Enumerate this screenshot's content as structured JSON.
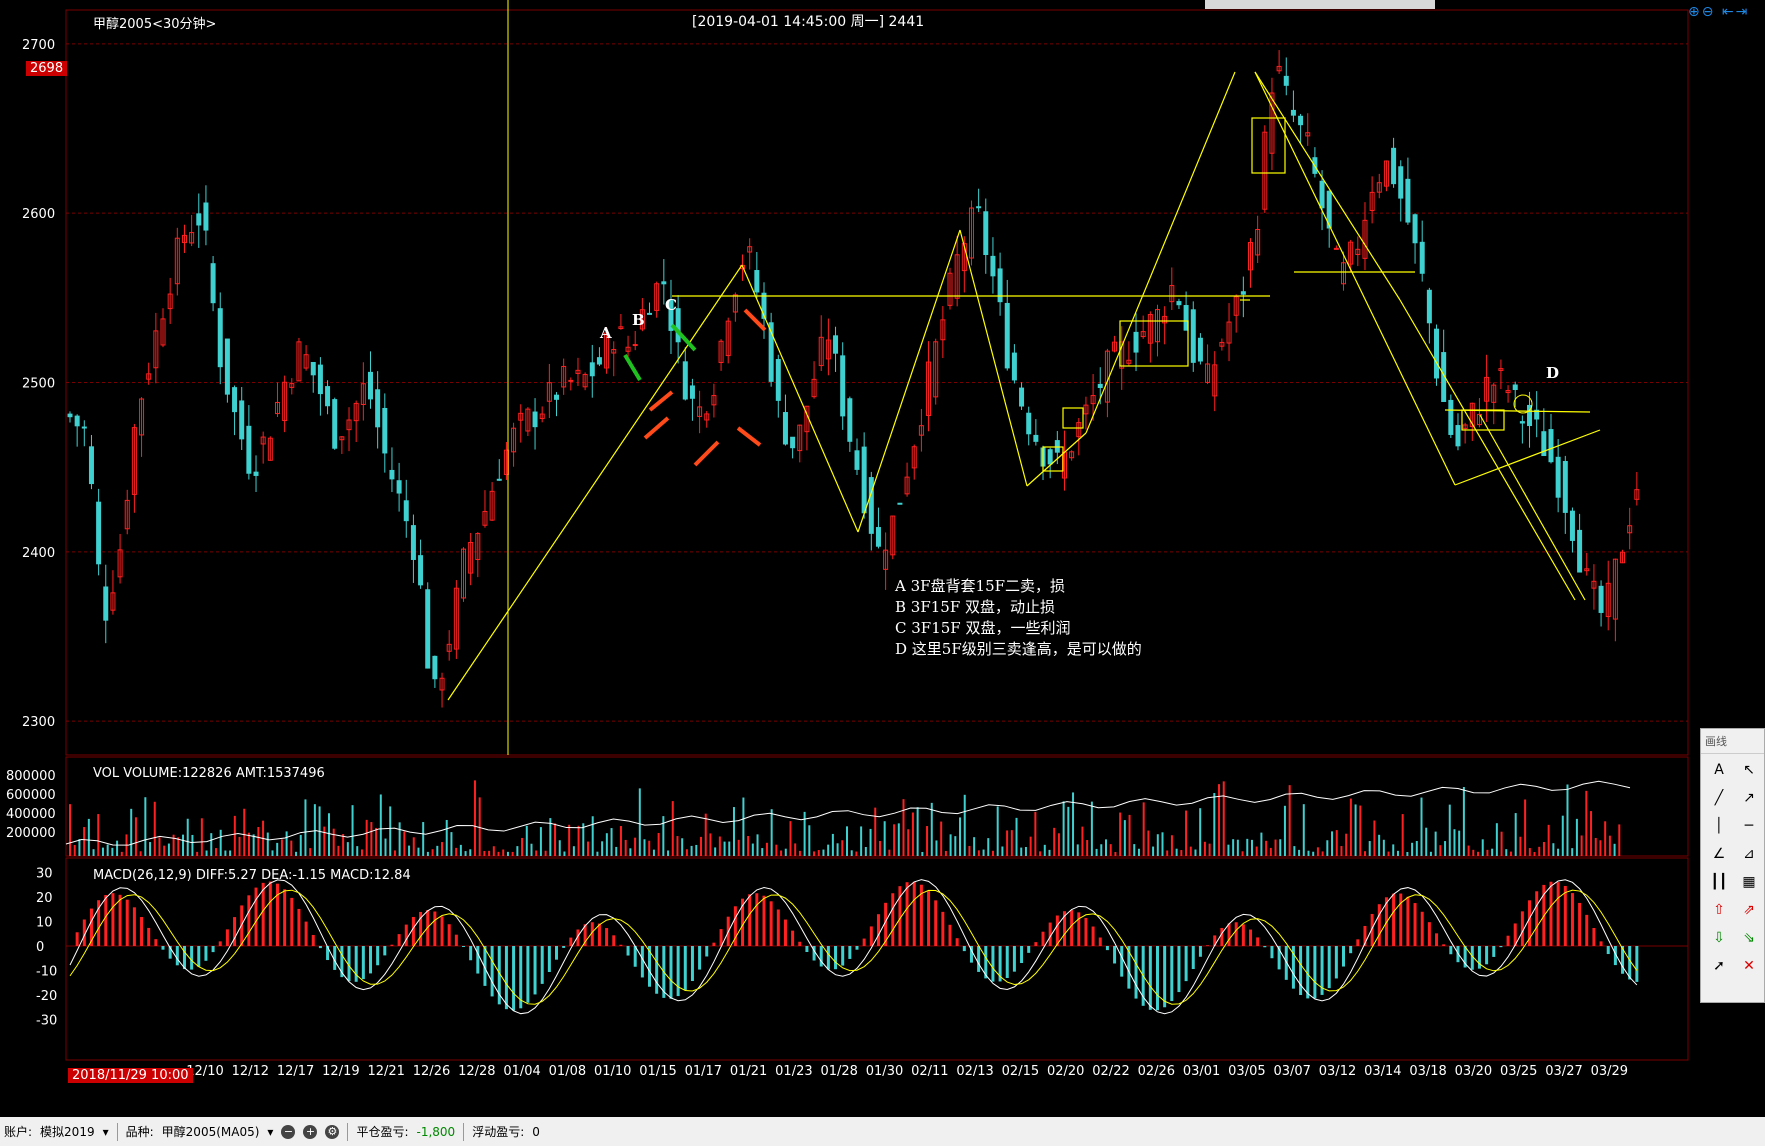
{
  "header": {
    "instrument": "甲醇2005<30分钟>",
    "cursor_info": "[2019-04-01  14:45:00 周一]   2441",
    "current_price": "2698",
    "cursor_date": "2018/11/29 10:00"
  },
  "chart_data": {
    "type": "candlestick",
    "price_axis": {
      "ticks": [
        2700,
        2600,
        2500,
        2400,
        2300
      ],
      "range": [
        2280,
        2720
      ]
    },
    "x_ticks": [
      "12/10",
      "12/12",
      "12/17",
      "12/19",
      "12/21",
      "12/26",
      "12/28",
      "01/04",
      "01/08",
      "01/10",
      "01/15",
      "01/17",
      "01/21",
      "01/23",
      "01/28",
      "01/30",
      "02/11",
      "02/13",
      "02/15",
      "02/20",
      "02/22",
      "02/26",
      "03/01",
      "03/05",
      "03/07",
      "03/12",
      "03/14",
      "03/18",
      "03/20",
      "03/25",
      "03/27",
      "03/29"
    ],
    "price_path": [
      2480,
      2470,
      2360,
      2400,
      2480,
      2520,
      2560,
      2590,
      2600,
      2520,
      2480,
      2450,
      2470,
      2500,
      2520,
      2500,
      2470,
      2480,
      2500,
      2460,
      2430,
      2400,
      2310,
      2350,
      2400,
      2420,
      2450,
      2470,
      2480,
      2490,
      2500,
      2500,
      2510,
      2530,
      2520,
      2550,
      2560,
      2510,
      2480,
      2500,
      2550,
      2580,
      2540,
      2480,
      2460,
      2500,
      2530,
      2480,
      2440,
      2400,
      2420,
      2460,
      2500,
      2540,
      2580,
      2600,
      2560,
      2510,
      2480,
      2460,
      2450,
      2470,
      2490,
      2510,
      2520,
      2530,
      2540,
      2560,
      2520,
      2500,
      2530,
      2550,
      2600,
      2690,
      2660,
      2640,
      2600,
      2560,
      2580,
      2620,
      2630,
      2600,
      2560,
      2500,
      2460,
      2480,
      2500,
      2500,
      2480,
      2470,
      2450,
      2420,
      2380,
      2360,
      2400,
      2440
    ],
    "volume_label": "VOL  VOLUME:122826 AMT:1537496",
    "volume_axis": [
      "800000",
      "600000",
      "400000",
      "200000"
    ],
    "macd_label": "MACD(26,12,9)  DIFF:5.27 DEA:-1.15 MACD:12.84",
    "macd_axis": [
      "30",
      "20",
      "10",
      "0",
      "-10",
      "-20",
      "-30"
    ],
    "annotations": {
      "A": "A",
      "B": "B",
      "C": "C",
      "D": "D"
    }
  },
  "notes": [
    "A 3F盘背套15F二卖，损",
    "B 3F15F 双盘，动止损",
    "C 3F15F 双盘，一些利润",
    "D  这里5F级别三卖逢高，是可以做的"
  ],
  "toolbar": {
    "account_label": "账户:",
    "account_value": "模拟2019",
    "symbol_label": "品种:",
    "symbol_value": "甲醇2005(MA05)",
    "pnl_label": "平仓盈亏:",
    "pnl_value": "-1,800",
    "float_label": "浮动盈亏:",
    "float_value": "0"
  },
  "draw_panel": {
    "title": "画线"
  },
  "colors": {
    "up": "#ff2020",
    "down": "#3fd0d0",
    "grid": "#7a0000",
    "line": "#ffff00"
  }
}
